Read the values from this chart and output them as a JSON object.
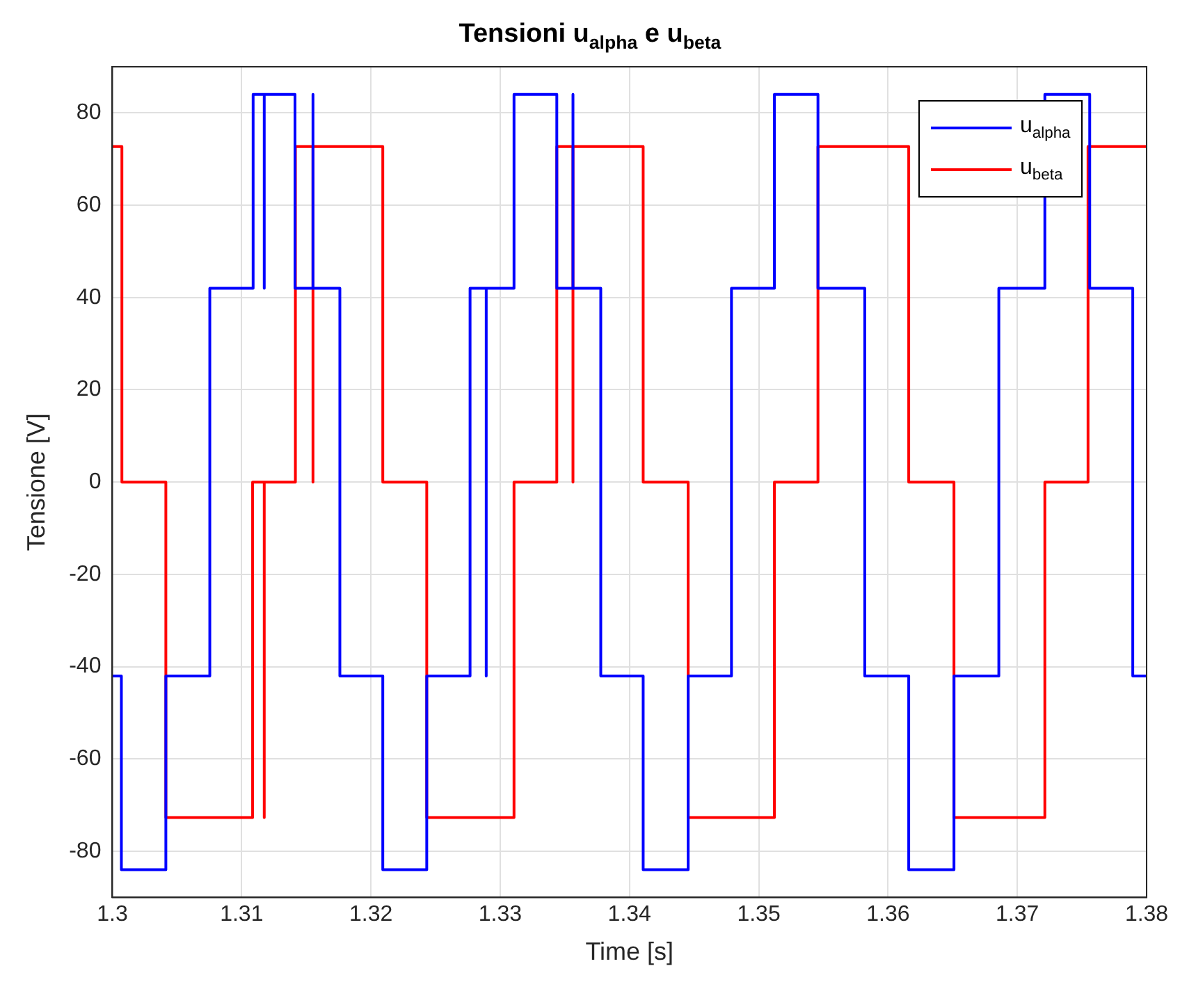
{
  "chart_data": {
    "type": "line",
    "title": "Tensioni u$_{alpha}$ e u$_{beta}$",
    "xlabel": "Time [s]",
    "ylabel": "Tensione [V]",
    "xlim": [
      1.3,
      1.38
    ],
    "xticks": [
      1.3,
      1.31,
      1.32,
      1.33,
      1.34,
      1.35,
      1.36,
      1.37,
      1.38
    ],
    "ylim": [
      -90,
      90
    ],
    "yticks": [
      -80,
      -60,
      -40,
      -20,
      0,
      20,
      40,
      60,
      80
    ],
    "grid": true,
    "legend": "top right",
    "marker": "none",
    "line_style": "solid",
    "series": [
      {
        "name": "u$_{alpha}$",
        "color": "#0000ff",
        "x": [
          1.3,
          1.3007,
          1.3007,
          1.30414,
          1.30414,
          1.30754,
          1.30754,
          1.31089,
          1.31089,
          1.31175,
          1.31175,
          1.31175,
          1.31413,
          1.31413,
          1.31552,
          1.31552,
          1.31552,
          1.3176,
          1.3176,
          1.32092,
          1.32092,
          1.32432,
          1.32432,
          1.32767,
          1.32767,
          1.32892,
          1.32892,
          1.32892,
          1.33107,
          1.33107,
          1.33438,
          1.33438,
          1.33563,
          1.33563,
          1.33563,
          1.33778,
          1.33778,
          1.34106,
          1.34106,
          1.34454,
          1.34454,
          1.34789,
          1.34789,
          1.35121,
          1.35121,
          1.35458,
          1.35458,
          1.3582,
          1.3582,
          1.3616,
          1.3616,
          1.3651,
          1.3651,
          1.36857,
          1.36857,
          1.37213,
          1.37213,
          1.3756,
          1.3756,
          1.37893,
          1.37893,
          1.38
        ],
        "values": [
          -42,
          -42,
          -84,
          -84,
          -42,
          -42,
          42,
          42,
          84,
          84,
          42,
          84,
          84,
          42,
          42,
          84,
          42,
          42,
          -42,
          -42,
          -84,
          -84,
          -42,
          -42,
          42,
          42,
          -42,
          42,
          42,
          84,
          84,
          42,
          42,
          84,
          42,
          42,
          -42,
          -42,
          -84,
          -84,
          -42,
          -42,
          42,
          42,
          84,
          84,
          42,
          42,
          -42,
          -42,
          -84,
          -84,
          -42,
          -42,
          42,
          42,
          84,
          84,
          42,
          42,
          -42,
          -42
        ]
      },
      {
        "name": "u$_{beta}$",
        "color": "#ff0000",
        "x": [
          1.3,
          1.30074,
          1.30074,
          1.30414,
          1.30414,
          1.31085,
          1.31085,
          1.31175,
          1.31175,
          1.31175,
          1.31416,
          1.31416,
          1.31552,
          1.31552,
          1.31552,
          1.32092,
          1.32092,
          1.32432,
          1.32432,
          1.33107,
          1.33107,
          1.33438,
          1.33438,
          1.33563,
          1.33563,
          1.33563,
          1.34106,
          1.34106,
          1.34454,
          1.34454,
          1.35121,
          1.35121,
          1.35458,
          1.35458,
          1.3616,
          1.3616,
          1.3651,
          1.3651,
          1.37213,
          1.37213,
          1.37547,
          1.37547,
          1.38
        ],
        "values": [
          72.7,
          72.7,
          0,
          0,
          -72.7,
          -72.7,
          0,
          0,
          -72.7,
          0,
          0,
          72.7,
          72.7,
          0,
          72.7,
          72.7,
          0,
          0,
          -72.7,
          -72.7,
          0,
          0,
          72.7,
          72.7,
          0,
          72.7,
          72.7,
          0,
          0,
          -72.7,
          -72.7,
          0,
          0,
          72.7,
          72.7,
          0,
          0,
          -72.7,
          -72.7,
          0,
          0,
          72.7,
          72.7
        ]
      }
    ]
  }
}
